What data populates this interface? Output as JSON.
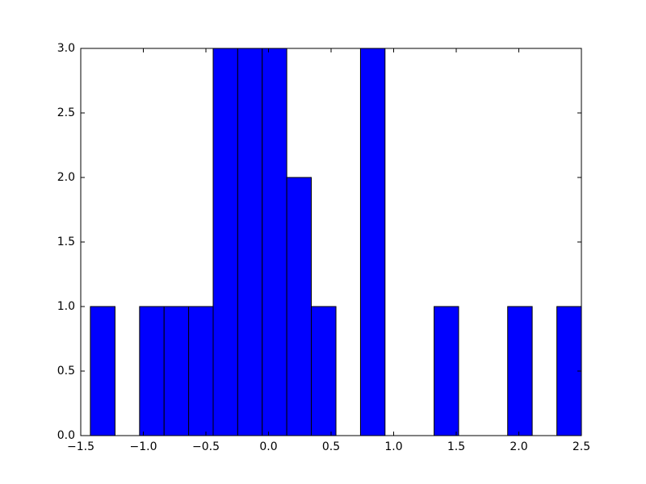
{
  "chart_data": {
    "type": "histogram",
    "bins": [
      -1.423,
      -1.226,
      -1.03,
      -0.834,
      -0.638,
      -0.442,
      -0.246,
      -0.05,
      0.146,
      0.342,
      0.539,
      0.735,
      0.931,
      1.127,
      1.323,
      1.519,
      1.715,
      1.911,
      2.107,
      2.304,
      2.5
    ],
    "counts": [
      1,
      0,
      1,
      1,
      1,
      3,
      3,
      3,
      2,
      1,
      0,
      3,
      0,
      0,
      1,
      0,
      0,
      1,
      0,
      1
    ],
    "color": "#0000ff",
    "xlim": [
      -1.5,
      2.5
    ],
    "xticks": [
      {
        "value": -1.5,
        "label": "−1.5"
      },
      {
        "value": -1.0,
        "label": "−1.0"
      },
      {
        "value": -0.5,
        "label": "−0.5"
      },
      {
        "value": 0,
        "label": "0.0"
      },
      {
        "value": 0.5,
        "label": "0.5"
      },
      {
        "value": 1,
        "label": "1.0"
      },
      {
        "value": 1.5,
        "label": "1.5"
      },
      {
        "value": 2,
        "label": "2.0"
      },
      {
        "value": 2.5,
        "label": "2.5"
      }
    ],
    "ylim": [
      0,
      3
    ],
    "yticks": [
      {
        "value": 0,
        "label": "0.0"
      },
      {
        "value": 0.5,
        "label": "0.5"
      },
      {
        "value": 1,
        "label": "1.0"
      },
      {
        "value": 1.5,
        "label": "1.5"
      },
      {
        "value": 2,
        "label": "2.0"
      },
      {
        "value": 2.5,
        "label": "2.5"
      },
      {
        "value": 3,
        "label": "3.0"
      }
    ]
  }
}
